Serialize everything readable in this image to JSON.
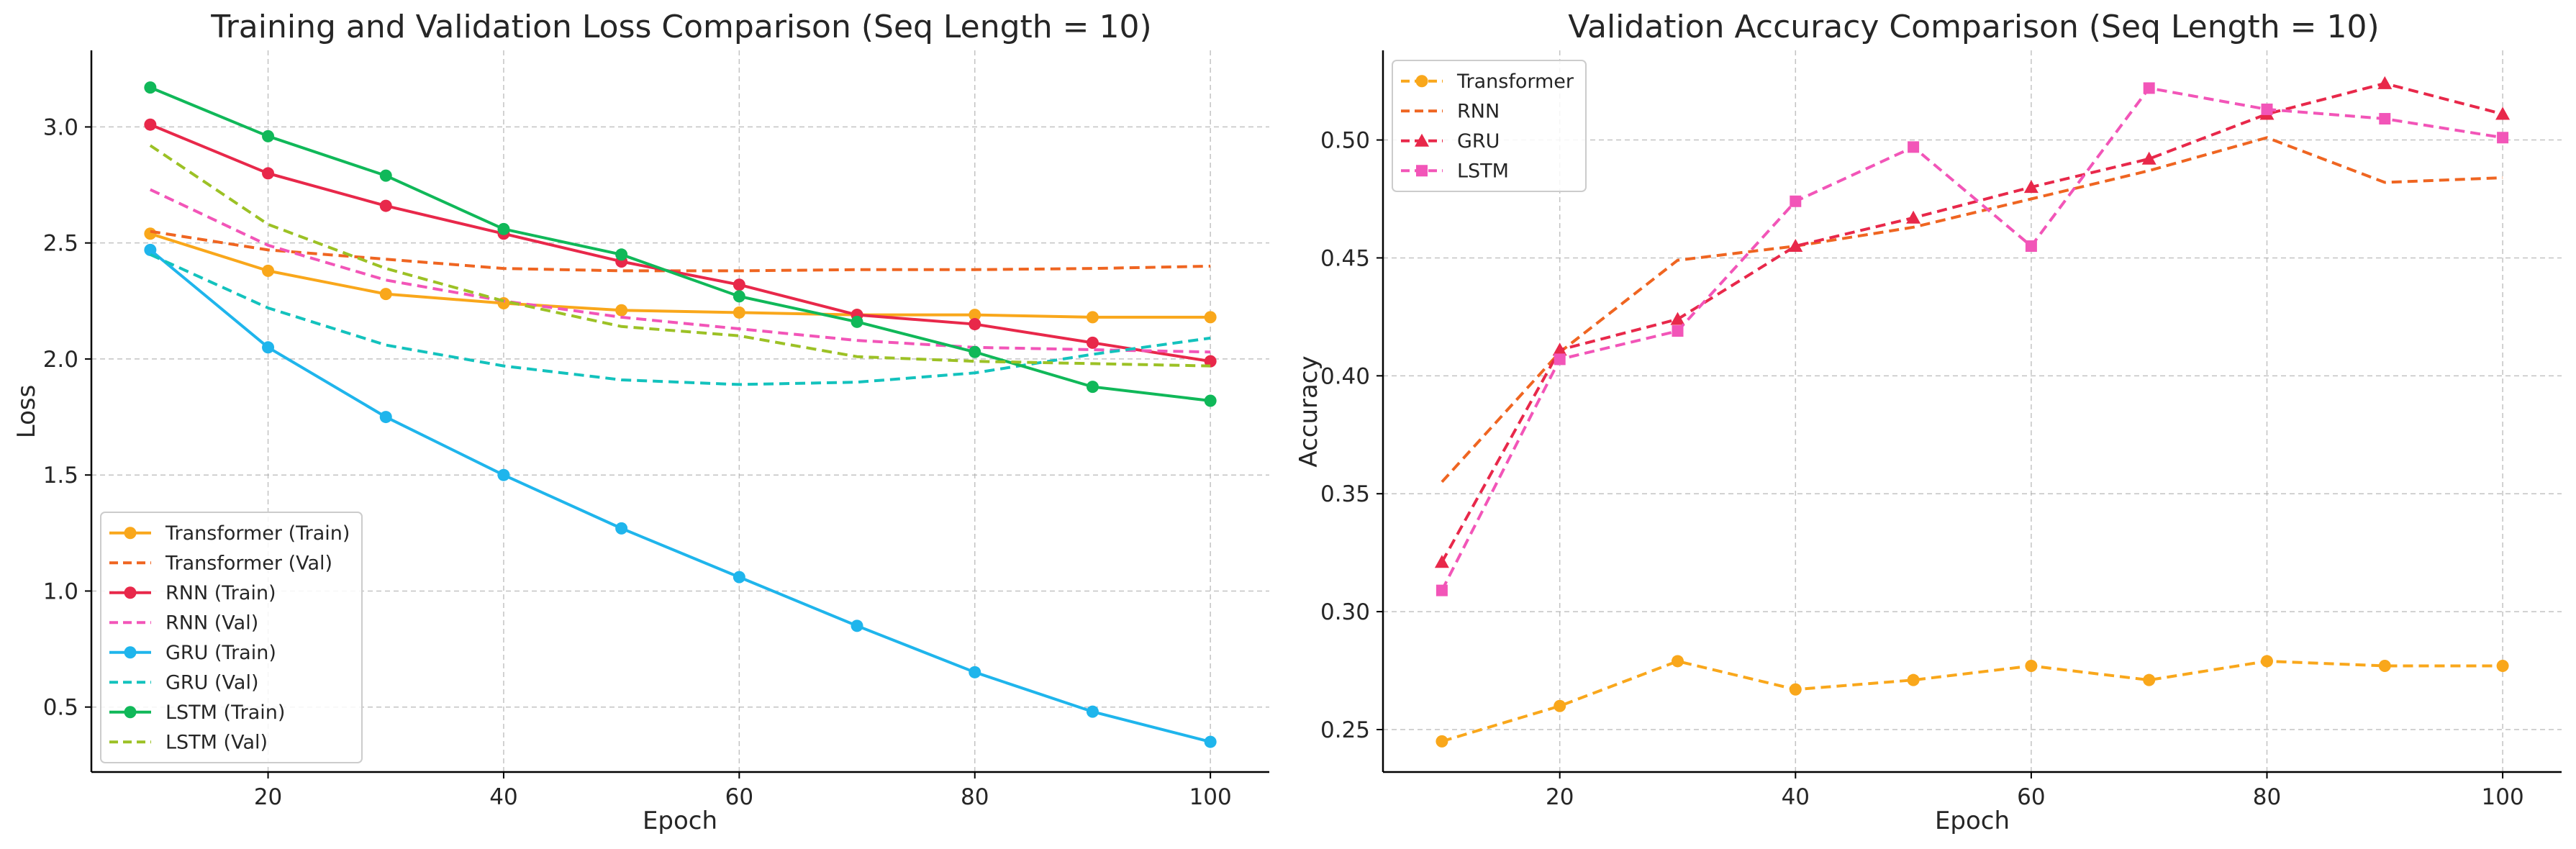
{
  "chart_data": [
    {
      "type": "line",
      "title": "Training and Validation Loss Comparison (Seq Length = 10)",
      "xlabel": "Epoch",
      "ylabel": "Loss",
      "xlim": [
        5,
        105
      ],
      "ylim": [
        0.22,
        3.33
      ],
      "xticks": [
        20,
        40,
        60,
        80,
        100
      ],
      "yticks": [
        0.5,
        1.0,
        1.5,
        2.0,
        2.5,
        3.0
      ],
      "grid": true,
      "legend_position": "lower-left",
      "x": [
        10,
        20,
        30,
        40,
        50,
        60,
        70,
        80,
        90,
        100
      ],
      "series": [
        {
          "name": "Transformer (Train)",
          "color": "#f9a71b",
          "dash": "solid",
          "marker": "circle",
          "values": [
            2.54,
            2.38,
            2.28,
            2.24,
            2.21,
            2.2,
            2.19,
            2.19,
            2.18,
            2.18
          ]
        },
        {
          "name": "Transformer (Val)",
          "color": "#ef6521",
          "dash": "dashed",
          "marker": "none",
          "values": [
            2.55,
            2.47,
            2.43,
            2.39,
            2.38,
            2.38,
            2.385,
            2.385,
            2.39,
            2.4
          ]
        },
        {
          "name": "RNN (Train)",
          "color": "#e8284a",
          "dash": "solid",
          "marker": "circle",
          "values": [
            3.01,
            2.8,
            2.66,
            2.54,
            2.42,
            2.32,
            2.19,
            2.15,
            2.07,
            1.99
          ]
        },
        {
          "name": "RNN (Val)",
          "color": "#f255b8",
          "dash": "dashed",
          "marker": "none",
          "values": [
            2.73,
            2.49,
            2.34,
            2.25,
            2.18,
            2.13,
            2.08,
            2.05,
            2.04,
            2.03
          ]
        },
        {
          "name": "GRU (Train)",
          "color": "#1fb5ec",
          "dash": "solid",
          "marker": "circle",
          "values": [
            2.47,
            2.05,
            1.75,
            1.5,
            1.27,
            1.06,
            0.85,
            0.65,
            0.48,
            0.35
          ]
        },
        {
          "name": "GRU (Val)",
          "color": "#13c2bd",
          "dash": "dashed",
          "marker": "none",
          "values": [
            2.45,
            2.22,
            2.06,
            1.97,
            1.91,
            1.89,
            1.9,
            1.94,
            2.02,
            2.09
          ]
        },
        {
          "name": "LSTM (Train)",
          "color": "#10b859",
          "dash": "solid",
          "marker": "circle",
          "values": [
            3.17,
            2.96,
            2.79,
            2.56,
            2.45,
            2.27,
            2.16,
            2.03,
            1.88,
            1.82
          ]
        },
        {
          "name": "LSTM (Val)",
          "color": "#9cc125",
          "dash": "dashed",
          "marker": "none",
          "values": [
            2.92,
            2.58,
            2.39,
            2.25,
            2.14,
            2.1,
            2.01,
            1.99,
            1.98,
            1.97
          ]
        }
      ]
    },
    {
      "type": "line",
      "title": "Validation Accuracy Comparison (Seq Length = 10)",
      "xlabel": "Epoch",
      "ylabel": "Accuracy",
      "xlim": [
        5,
        105
      ],
      "ylim": [
        0.232,
        0.538
      ],
      "xticks": [
        20,
        40,
        60,
        80,
        100
      ],
      "yticks": [
        0.25,
        0.3,
        0.35,
        0.4,
        0.45,
        0.5
      ],
      "grid": true,
      "legend_position": "upper-left",
      "x": [
        10,
        20,
        30,
        40,
        50,
        60,
        70,
        80,
        90,
        100
      ],
      "series": [
        {
          "name": "Transformer",
          "color": "#f9a71b",
          "dash": "dashed",
          "marker": "circle",
          "values": [
            0.245,
            0.26,
            0.279,
            0.267,
            0.271,
            0.277,
            0.271,
            0.279,
            0.277,
            0.277
          ]
        },
        {
          "name": "RNN",
          "color": "#ef6521",
          "dash": "dashed",
          "marker": "none",
          "values": [
            0.355,
            0.41,
            0.449,
            0.455,
            0.463,
            0.475,
            0.487,
            0.501,
            0.482,
            0.484
          ]
        },
        {
          "name": "GRU",
          "color": "#e8284a",
          "dash": "dashed",
          "marker": "triangle",
          "values": [
            0.321,
            0.411,
            0.424,
            0.455,
            0.467,
            0.48,
            0.492,
            0.511,
            0.524,
            0.511
          ]
        },
        {
          "name": "LSTM",
          "color": "#f255b8",
          "dash": "dashed",
          "marker": "square",
          "values": [
            0.309,
            0.407,
            0.419,
            0.474,
            0.497,
            0.455,
            0.522,
            0.513,
            0.509,
            0.501
          ]
        }
      ]
    }
  ]
}
